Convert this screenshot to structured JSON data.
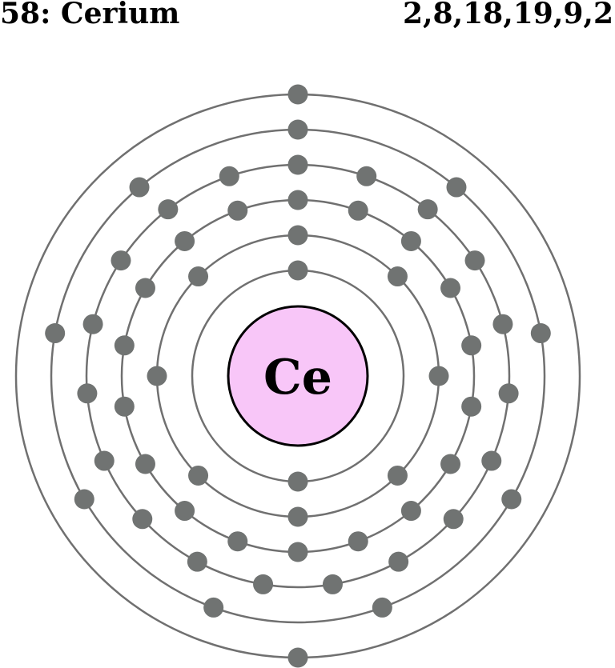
{
  "element": {
    "atomic_number_label": "58: Cerium",
    "symbol": "Ce",
    "electron_configuration": "2,8,18,19,9,2",
    "shell_electron_counts": [
      2,
      8,
      18,
      19,
      9,
      2
    ]
  },
  "colors": {
    "nucleus_fill": "#f8c6f8",
    "nucleus_stroke": "#000000",
    "shell_stroke": "#707070",
    "electron_fill": "#707372",
    "text": "#000000"
  }
}
